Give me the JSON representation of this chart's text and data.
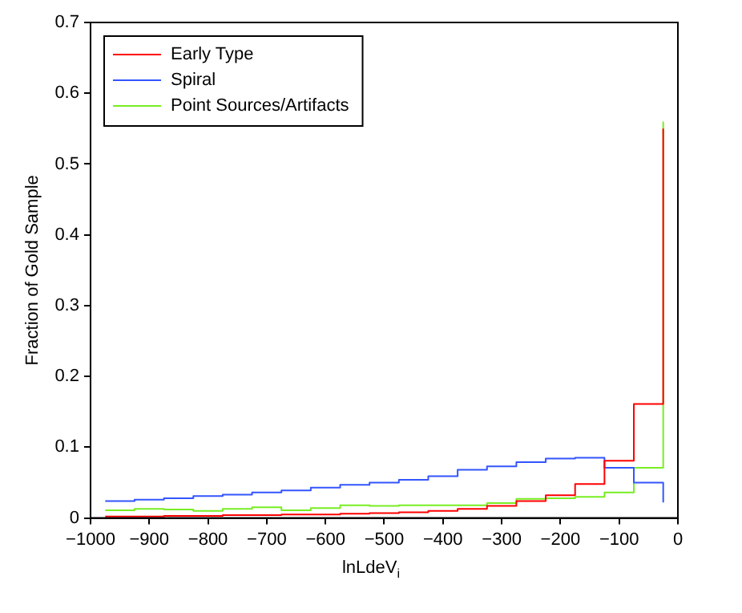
{
  "chart_data": {
    "type": "step",
    "xlabel": "lnLdeV$_{i}$",
    "ylabel": "Fraction of Gold Sample",
    "x": [
      -975,
      -925,
      -875,
      -825,
      -775,
      -725,
      -675,
      -625,
      -575,
      -525,
      -475,
      -425,
      -375,
      -325,
      -275,
      -225,
      -175,
      -125,
      -75,
      -25
    ],
    "series": [
      {
        "name": "Early Type",
        "color": "#ff0000",
        "values": [
          0.002,
          0.002,
          0.003,
          0.003,
          0.004,
          0.004,
          0.005,
          0.005,
          0.006,
          0.007,
          0.008,
          0.01,
          0.013,
          0.017,
          0.024,
          0.032,
          0.048,
          0.081,
          0.161,
          0.55
        ]
      },
      {
        "name": "Spiral",
        "color": "#3355ff",
        "values": [
          0.024,
          0.026,
          0.028,
          0.031,
          0.033,
          0.036,
          0.039,
          0.043,
          0.047,
          0.05,
          0.054,
          0.059,
          0.068,
          0.073,
          0.079,
          0.084,
          0.085,
          0.071,
          0.05,
          0.022
        ]
      },
      {
        "name": "Point Sources/Artifacts",
        "color": "#77ee22",
        "values": [
          0.011,
          0.013,
          0.012,
          0.01,
          0.013,
          0.015,
          0.011,
          0.014,
          0.018,
          0.017,
          0.018,
          0.018,
          0.018,
          0.021,
          0.027,
          0.028,
          0.03,
          0.036,
          0.071,
          0.56
        ]
      }
    ],
    "xlim": [
      -1000,
      0
    ],
    "xticks": [
      -1000,
      -900,
      -800,
      -700,
      -600,
      -500,
      -400,
      -300,
      -200,
      -100,
      0
    ],
    "ylim": [
      0,
      0.7
    ],
    "yticks": [
      0,
      0.1,
      0.2,
      0.3,
      0.4,
      0.5,
      0.6,
      0.7
    ],
    "grid": false,
    "legend": "top left"
  }
}
